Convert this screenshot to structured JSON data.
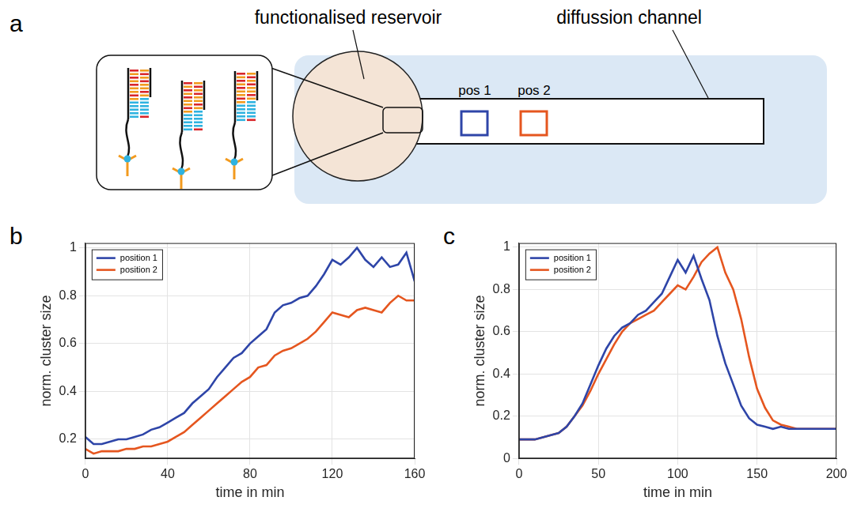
{
  "diagram": {
    "panel_label": "a",
    "labels": {
      "reservoir": "functionalised reservoir",
      "channel": "diffussion channel",
      "pos1": "pos 1",
      "pos2": "pos 2"
    }
  },
  "chart_data": [
    {
      "panel_label": "b",
      "type": "line",
      "x_label": "time in min",
      "y_label": "norm. cluster size",
      "x": [
        0,
        4,
        8,
        12,
        16,
        20,
        24,
        28,
        32,
        36,
        40,
        44,
        48,
        52,
        56,
        60,
        64,
        68,
        72,
        76,
        80,
        84,
        88,
        92,
        96,
        100,
        104,
        108,
        112,
        116,
        120,
        124,
        128,
        132,
        136,
        140,
        144,
        148,
        152,
        156,
        160
      ],
      "series": [
        {
          "name": "position 1",
          "color": "#2E45A8",
          "values": [
            0.21,
            0.18,
            0.18,
            0.19,
            0.2,
            0.2,
            0.21,
            0.22,
            0.24,
            0.25,
            0.27,
            0.29,
            0.31,
            0.35,
            0.38,
            0.41,
            0.46,
            0.5,
            0.54,
            0.56,
            0.6,
            0.63,
            0.66,
            0.73,
            0.76,
            0.77,
            0.79,
            0.8,
            0.84,
            0.89,
            0.95,
            0.93,
            0.96,
            1.0,
            0.95,
            0.92,
            0.96,
            0.92,
            0.93,
            0.98,
            0.86
          ]
        },
        {
          "name": "position 2",
          "color": "#E5561F",
          "values": [
            0.16,
            0.14,
            0.15,
            0.15,
            0.15,
            0.16,
            0.16,
            0.17,
            0.17,
            0.18,
            0.19,
            0.21,
            0.23,
            0.26,
            0.29,
            0.32,
            0.35,
            0.38,
            0.41,
            0.44,
            0.46,
            0.5,
            0.51,
            0.55,
            0.57,
            0.58,
            0.6,
            0.62,
            0.65,
            0.69,
            0.73,
            0.72,
            0.71,
            0.74,
            0.75,
            0.74,
            0.73,
            0.77,
            0.8,
            0.78,
            0.78
          ]
        }
      ],
      "xlim": [
        0,
        160
      ],
      "xticks": [
        0,
        40,
        80,
        120,
        160
      ],
      "ylim": [
        0.12,
        1.02
      ],
      "yticks": [
        0.2,
        0.4,
        0.6,
        0.8,
        1
      ],
      "grid": true,
      "legend": "top-left"
    },
    {
      "panel_label": "c",
      "type": "line",
      "x_label": "time in min",
      "y_label": "norm. cluster size",
      "x": [
        0,
        5,
        10,
        15,
        20,
        25,
        30,
        35,
        40,
        45,
        50,
        55,
        60,
        65,
        70,
        75,
        80,
        85,
        90,
        95,
        100,
        105,
        110,
        115,
        120,
        125,
        130,
        135,
        140,
        145,
        150,
        155,
        160,
        165,
        170,
        175,
        180,
        185,
        190,
        195,
        200
      ],
      "series": [
        {
          "name": "position 1",
          "color": "#2E45A8",
          "values": [
            0.09,
            0.09,
            0.09,
            0.1,
            0.11,
            0.12,
            0.15,
            0.2,
            0.26,
            0.35,
            0.44,
            0.52,
            0.58,
            0.62,
            0.64,
            0.68,
            0.7,
            0.74,
            0.78,
            0.86,
            0.94,
            0.88,
            0.96,
            0.85,
            0.75,
            0.58,
            0.45,
            0.35,
            0.25,
            0.19,
            0.16,
            0.15,
            0.14,
            0.15,
            0.14,
            0.14,
            0.14,
            0.14,
            0.14,
            0.14,
            0.14
          ]
        },
        {
          "name": "position 2",
          "color": "#E5561F",
          "values": [
            0.09,
            0.09,
            0.09,
            0.1,
            0.11,
            0.12,
            0.15,
            0.2,
            0.25,
            0.32,
            0.4,
            0.47,
            0.54,
            0.6,
            0.64,
            0.66,
            0.68,
            0.7,
            0.74,
            0.78,
            0.82,
            0.8,
            0.86,
            0.93,
            0.97,
            1.0,
            0.88,
            0.8,
            0.66,
            0.48,
            0.33,
            0.24,
            0.18,
            0.16,
            0.15,
            0.14,
            0.14,
            0.14,
            0.14,
            0.14,
            0.14
          ]
        }
      ],
      "xlim": [
        0,
        200
      ],
      "xticks": [
        0,
        50,
        100,
        150,
        200
      ],
      "ylim": [
        0,
        1.02
      ],
      "yticks": [
        0,
        0.2,
        0.4,
        0.6,
        0.8,
        1
      ],
      "grid": true,
      "legend": "top-left"
    }
  ]
}
